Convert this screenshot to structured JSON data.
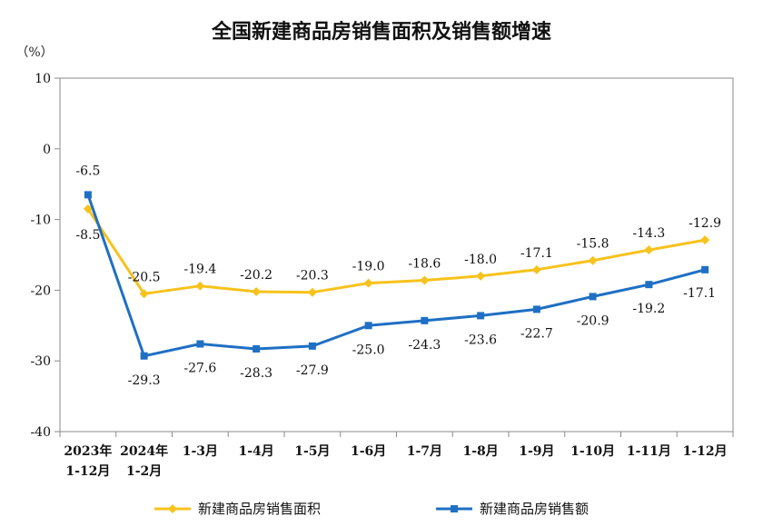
{
  "chart_data": {
    "type": "line",
    "title": "全国新建商品房销售面积及销售额增速",
    "ylabel": "（%）",
    "xlabel": "",
    "ylim": [
      -40,
      10
    ],
    "yticks": [
      10,
      0,
      -10,
      -20,
      -30,
      -40
    ],
    "grid": false,
    "legend_position": "bottom",
    "categories": [
      [
        "2023年",
        "1-12月"
      ],
      [
        "2024年",
        "1-2月"
      ],
      [
        "1-3月"
      ],
      [
        "1-4月"
      ],
      [
        "1-5月"
      ],
      [
        "1-6月"
      ],
      [
        "1-7月"
      ],
      [
        "1-8月"
      ],
      [
        "1-9月"
      ],
      [
        "1-10月"
      ],
      [
        "1-11月"
      ],
      [
        "1-12月"
      ]
    ],
    "series": [
      {
        "name": "新建商品房销售面积",
        "color": "#F7C21B",
        "marker": "diamond",
        "values": [
          -8.5,
          -20.5,
          -19.4,
          -20.2,
          -20.3,
          -19.0,
          -18.6,
          -18.0,
          -17.1,
          -15.8,
          -14.3,
          -12.9
        ],
        "labels": [
          "-8.5",
          "-20.5",
          "-19.4",
          "-20.2",
          "-20.3",
          "-19.0",
          "-18.6",
          "-18.0",
          "-17.1",
          "-15.8",
          "-14.3",
          "-12.9"
        ]
      },
      {
        "name": "新建商品房销售额",
        "color": "#1F6FC4",
        "marker": "square",
        "values": [
          -6.5,
          -29.3,
          -27.6,
          -28.3,
          -27.9,
          -25.0,
          -24.3,
          -23.6,
          -22.7,
          -20.9,
          -19.2,
          -17.1
        ],
        "labels": [
          "-6.5",
          "-29.3",
          "-27.6",
          "-28.3",
          "-27.9",
          "-25.0",
          "-24.3",
          "-23.6",
          "-22.7",
          "-20.9",
          "-19.2",
          "-17.1"
        ]
      }
    ]
  }
}
